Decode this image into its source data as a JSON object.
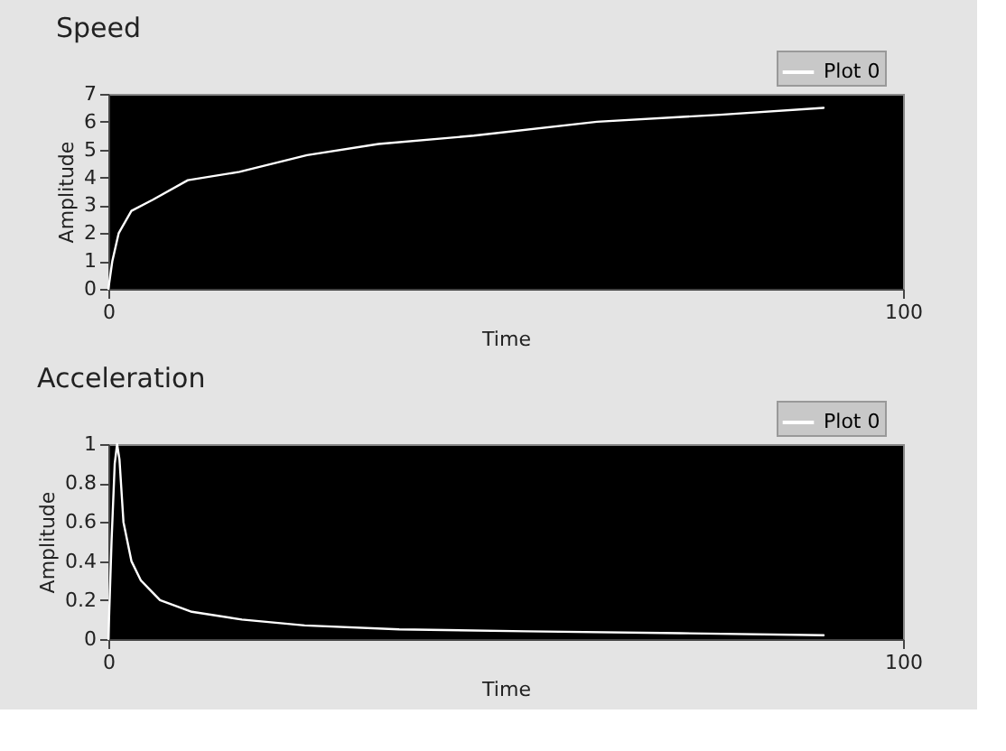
{
  "chart_data": [
    {
      "type": "line",
      "title": "Speed",
      "xlabel": "Time",
      "ylabel": "Amplitude",
      "legend": "top right",
      "grid": false,
      "x": [
        0,
        0.5,
        1.3,
        2.9,
        5.6,
        10,
        16.5,
        25,
        34,
        46,
        61.5,
        77,
        90
      ],
      "series": [
        {
          "name": "Plot 0",
          "color": "#ffffff",
          "values": [
            0,
            1,
            2,
            2.8,
            3.2,
            3.9,
            4.2,
            4.8,
            5.2,
            5.5,
            6.0,
            6.25,
            6.5
          ]
        }
      ],
      "xlim": [
        0,
        100
      ],
      "xticks": [
        0,
        100
      ],
      "ylim": [
        0,
        7
      ],
      "yticks": [
        0,
        1,
        2,
        3,
        4,
        5,
        6,
        7
      ]
    },
    {
      "type": "line",
      "title": "Acceleration",
      "xlabel": "Time",
      "ylabel": "Amplitude",
      "legend": "top right",
      "grid": false,
      "x": [
        0,
        0.4,
        0.8,
        1.1,
        1.4,
        1.9,
        2.9,
        4.1,
        6.5,
        10.5,
        16.8,
        24.7,
        36.6,
        52.5,
        72,
        90
      ],
      "series": [
        {
          "name": "Plot 0",
          "color": "#ffffff",
          "values": [
            0,
            0.5,
            0.9,
            1.0,
            0.92,
            0.6,
            0.4,
            0.3,
            0.2,
            0.14,
            0.1,
            0.07,
            0.05,
            0.04,
            0.03,
            0.02
          ]
        }
      ],
      "xlim": [
        0,
        100
      ],
      "xticks": [
        0,
        100
      ],
      "ylim": [
        0,
        1
      ],
      "yticks": [
        0,
        0.2,
        0.4,
        0.6,
        0.8,
        1
      ]
    }
  ]
}
